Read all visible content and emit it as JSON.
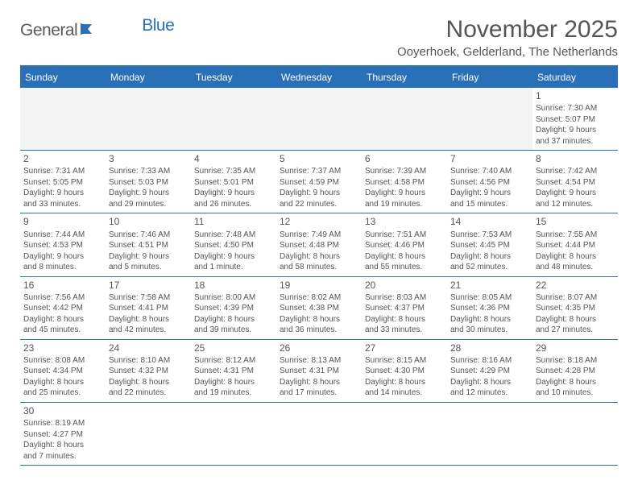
{
  "logo": {
    "part1": "General",
    "part2": "Blue"
  },
  "title": "November 2025",
  "location": "Ooyerhoek, Gelderland, The Netherlands",
  "colors": {
    "accent": "#2970b8",
    "text": "#555555",
    "empty_bg": "#f3f3f3",
    "background": "#ffffff"
  },
  "dayNames": [
    "Sunday",
    "Monday",
    "Tuesday",
    "Wednesday",
    "Thursday",
    "Friday",
    "Saturday"
  ],
  "days": {
    "1": {
      "sunrise": "Sunrise: 7:30 AM",
      "sunset": "Sunset: 5:07 PM",
      "daylight1": "Daylight: 9 hours",
      "daylight2": "and 37 minutes."
    },
    "2": {
      "sunrise": "Sunrise: 7:31 AM",
      "sunset": "Sunset: 5:05 PM",
      "daylight1": "Daylight: 9 hours",
      "daylight2": "and 33 minutes."
    },
    "3": {
      "sunrise": "Sunrise: 7:33 AM",
      "sunset": "Sunset: 5:03 PM",
      "daylight1": "Daylight: 9 hours",
      "daylight2": "and 29 minutes."
    },
    "4": {
      "sunrise": "Sunrise: 7:35 AM",
      "sunset": "Sunset: 5:01 PM",
      "daylight1": "Daylight: 9 hours",
      "daylight2": "and 26 minutes."
    },
    "5": {
      "sunrise": "Sunrise: 7:37 AM",
      "sunset": "Sunset: 4:59 PM",
      "daylight1": "Daylight: 9 hours",
      "daylight2": "and 22 minutes."
    },
    "6": {
      "sunrise": "Sunrise: 7:39 AM",
      "sunset": "Sunset: 4:58 PM",
      "daylight1": "Daylight: 9 hours",
      "daylight2": "and 19 minutes."
    },
    "7": {
      "sunrise": "Sunrise: 7:40 AM",
      "sunset": "Sunset: 4:56 PM",
      "daylight1": "Daylight: 9 hours",
      "daylight2": "and 15 minutes."
    },
    "8": {
      "sunrise": "Sunrise: 7:42 AM",
      "sunset": "Sunset: 4:54 PM",
      "daylight1": "Daylight: 9 hours",
      "daylight2": "and 12 minutes."
    },
    "9": {
      "sunrise": "Sunrise: 7:44 AM",
      "sunset": "Sunset: 4:53 PM",
      "daylight1": "Daylight: 9 hours",
      "daylight2": "and 8 minutes."
    },
    "10": {
      "sunrise": "Sunrise: 7:46 AM",
      "sunset": "Sunset: 4:51 PM",
      "daylight1": "Daylight: 9 hours",
      "daylight2": "and 5 minutes."
    },
    "11": {
      "sunrise": "Sunrise: 7:48 AM",
      "sunset": "Sunset: 4:50 PM",
      "daylight1": "Daylight: 9 hours",
      "daylight2": "and 1 minute."
    },
    "12": {
      "sunrise": "Sunrise: 7:49 AM",
      "sunset": "Sunset: 4:48 PM",
      "daylight1": "Daylight: 8 hours",
      "daylight2": "and 58 minutes."
    },
    "13": {
      "sunrise": "Sunrise: 7:51 AM",
      "sunset": "Sunset: 4:46 PM",
      "daylight1": "Daylight: 8 hours",
      "daylight2": "and 55 minutes."
    },
    "14": {
      "sunrise": "Sunrise: 7:53 AM",
      "sunset": "Sunset: 4:45 PM",
      "daylight1": "Daylight: 8 hours",
      "daylight2": "and 52 minutes."
    },
    "15": {
      "sunrise": "Sunrise: 7:55 AM",
      "sunset": "Sunset: 4:44 PM",
      "daylight1": "Daylight: 8 hours",
      "daylight2": "and 48 minutes."
    },
    "16": {
      "sunrise": "Sunrise: 7:56 AM",
      "sunset": "Sunset: 4:42 PM",
      "daylight1": "Daylight: 8 hours",
      "daylight2": "and 45 minutes."
    },
    "17": {
      "sunrise": "Sunrise: 7:58 AM",
      "sunset": "Sunset: 4:41 PM",
      "daylight1": "Daylight: 8 hours",
      "daylight2": "and 42 minutes."
    },
    "18": {
      "sunrise": "Sunrise: 8:00 AM",
      "sunset": "Sunset: 4:39 PM",
      "daylight1": "Daylight: 8 hours",
      "daylight2": "and 39 minutes."
    },
    "19": {
      "sunrise": "Sunrise: 8:02 AM",
      "sunset": "Sunset: 4:38 PM",
      "daylight1": "Daylight: 8 hours",
      "daylight2": "and 36 minutes."
    },
    "20": {
      "sunrise": "Sunrise: 8:03 AM",
      "sunset": "Sunset: 4:37 PM",
      "daylight1": "Daylight: 8 hours",
      "daylight2": "and 33 minutes."
    },
    "21": {
      "sunrise": "Sunrise: 8:05 AM",
      "sunset": "Sunset: 4:36 PM",
      "daylight1": "Daylight: 8 hours",
      "daylight2": "and 30 minutes."
    },
    "22": {
      "sunrise": "Sunrise: 8:07 AM",
      "sunset": "Sunset: 4:35 PM",
      "daylight1": "Daylight: 8 hours",
      "daylight2": "and 27 minutes."
    },
    "23": {
      "sunrise": "Sunrise: 8:08 AM",
      "sunset": "Sunset: 4:34 PM",
      "daylight1": "Daylight: 8 hours",
      "daylight2": "and 25 minutes."
    },
    "24": {
      "sunrise": "Sunrise: 8:10 AM",
      "sunset": "Sunset: 4:32 PM",
      "daylight1": "Daylight: 8 hours",
      "daylight2": "and 22 minutes."
    },
    "25": {
      "sunrise": "Sunrise: 8:12 AM",
      "sunset": "Sunset: 4:31 PM",
      "daylight1": "Daylight: 8 hours",
      "daylight2": "and 19 minutes."
    },
    "26": {
      "sunrise": "Sunrise: 8:13 AM",
      "sunset": "Sunset: 4:31 PM",
      "daylight1": "Daylight: 8 hours",
      "daylight2": "and 17 minutes."
    },
    "27": {
      "sunrise": "Sunrise: 8:15 AM",
      "sunset": "Sunset: 4:30 PM",
      "daylight1": "Daylight: 8 hours",
      "daylight2": "and 14 minutes."
    },
    "28": {
      "sunrise": "Sunrise: 8:16 AM",
      "sunset": "Sunset: 4:29 PM",
      "daylight1": "Daylight: 8 hours",
      "daylight2": "and 12 minutes."
    },
    "29": {
      "sunrise": "Sunrise: 8:18 AM",
      "sunset": "Sunset: 4:28 PM",
      "daylight1": "Daylight: 8 hours",
      "daylight2": "and 10 minutes."
    },
    "30": {
      "sunrise": "Sunrise: 8:19 AM",
      "sunset": "Sunset: 4:27 PM",
      "daylight1": "Daylight: 8 hours",
      "daylight2": "and 7 minutes."
    }
  },
  "layout": {
    "startDayOffset": 6,
    "daysInMonth": 30,
    "columns": 7
  }
}
